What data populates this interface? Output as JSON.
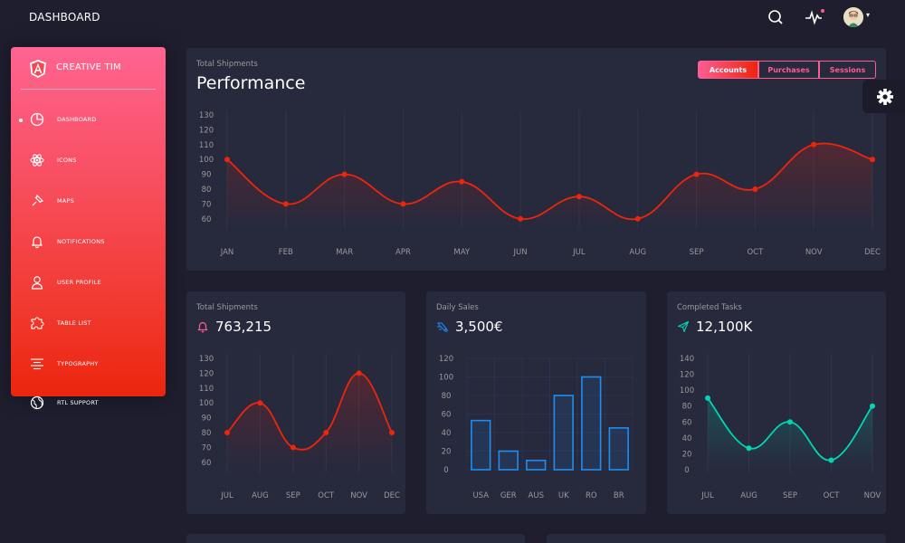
{
  "topbar": {
    "title": "DASHBOARD"
  },
  "icons": {
    "search": "search-icon",
    "activity": "activity-icon",
    "settings": "gear-icon",
    "caret": "▾"
  },
  "colors": {
    "accent": "#fd5d93",
    "danger": "#ec250d",
    "info": "#1d8cf8",
    "success": "#00d6b4",
    "card": "#27293d",
    "background": "#1e1e2f"
  },
  "sidebar": {
    "brand": "CREATIVE TIM",
    "items": [
      {
        "label": "DASHBOARD",
        "icon": "chart-pie-icon",
        "active": true
      },
      {
        "label": "ICONS",
        "icon": "atom-icon"
      },
      {
        "label": "MAPS",
        "icon": "pin-icon"
      },
      {
        "label": "NOTIFICATIONS",
        "icon": "bell-icon"
      },
      {
        "label": "USER PROFILE",
        "icon": "user-icon"
      },
      {
        "label": "TABLE LIST",
        "icon": "puzzle-icon"
      },
      {
        "label": "TYPOGRAPHY",
        "icon": "align-center-icon"
      },
      {
        "label": "RTL SUPPORT",
        "icon": "world-icon"
      }
    ]
  },
  "performance": {
    "category": "Total Shipments",
    "title": "Performance",
    "tabs": [
      "Accounts",
      "Purchases",
      "Sessions"
    ],
    "active_tab": "Accounts"
  },
  "cards": {
    "shipments": {
      "category": "Total Shipments",
      "value": "763,215",
      "icon": "bell-icon"
    },
    "sales": {
      "category": "Daily Sales",
      "value": "3,500€",
      "icon": "delivery-fast-icon"
    },
    "tasks": {
      "category": "Completed Tasks",
      "value": "12,100K",
      "icon": "send-icon"
    }
  },
  "chart_data": [
    {
      "type": "line",
      "categories": [
        "JAN",
        "FEB",
        "MAR",
        "APR",
        "MAY",
        "JUN",
        "JUL",
        "AUG",
        "SEP",
        "OCT",
        "NOV",
        "DEC"
      ],
      "series": [
        {
          "values": [
            100,
            70,
            90,
            70,
            85,
            60,
            75,
            60,
            90,
            80,
            110,
            100
          ]
        }
      ],
      "yticks": [
        60,
        70,
        80,
        90,
        100,
        110,
        120,
        130
      ],
      "ylim": [
        55,
        130
      ],
      "color": "#ec250d"
    },
    {
      "type": "line",
      "categories": [
        "JUL",
        "AUG",
        "SEP",
        "OCT",
        "NOV",
        "DEC"
      ],
      "series": [
        {
          "values": [
            80,
            100,
            70,
            80,
            120,
            80
          ]
        }
      ],
      "yticks": [
        60,
        70,
        80,
        90,
        100,
        110,
        120,
        130
      ],
      "ylim": [
        55,
        130
      ],
      "color": "#ec250d"
    },
    {
      "type": "bar",
      "categories": [
        "USA",
        "GER",
        "AUS",
        "UK",
        "RO",
        "BR"
      ],
      "series": [
        {
          "values": [
            53,
            20,
            10,
            80,
            100,
            45
          ]
        }
      ],
      "yticks": [
        0,
        20,
        40,
        60,
        80,
        100,
        120
      ],
      "ylim": [
        0,
        120
      ],
      "color": "#1f8ef1"
    },
    {
      "type": "line",
      "categories": [
        "JUL",
        "AUG",
        "SEP",
        "OCT",
        "NOV"
      ],
      "series": [
        {
          "values": [
            90,
            27,
            60,
            12,
            80
          ]
        }
      ],
      "yticks": [
        0,
        20,
        40,
        60,
        80,
        100,
        120,
        140
      ],
      "ylim": [
        0,
        140
      ],
      "color": "#00d6b4"
    }
  ]
}
